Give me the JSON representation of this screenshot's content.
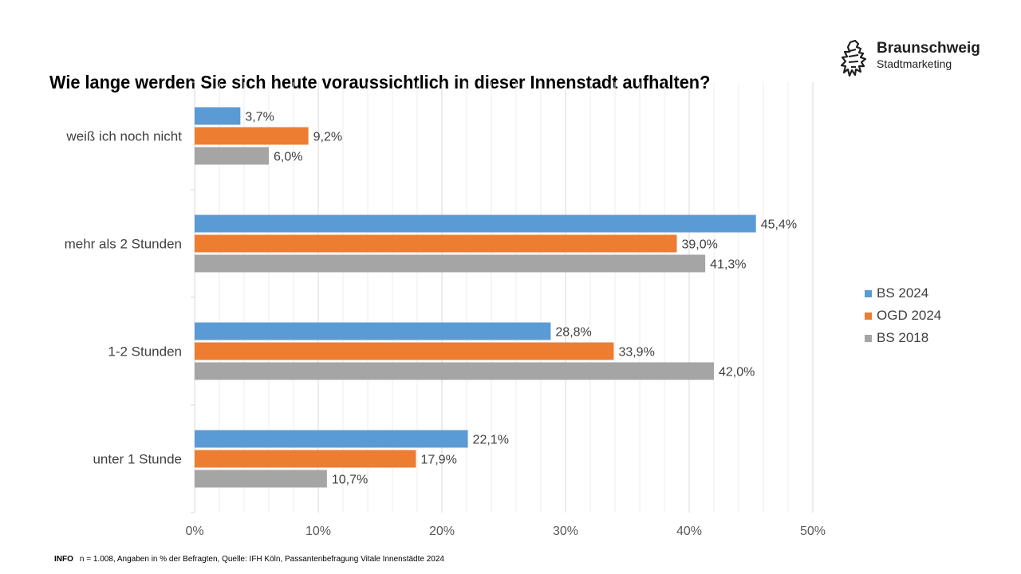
{
  "brand": {
    "name": "Braunschweig",
    "sub": "Stadtmarketing",
    "logo_icon": "lion-icon"
  },
  "footnote": {
    "tag": "INFO",
    "text": "n = 1.008, Angaben in % der Befragten, Quelle: IFH Köln, Passantenbefragung Vitale Innenstädte 2024"
  },
  "chart_data": {
    "type": "bar",
    "orientation": "horizontal",
    "title": "Wie lange werden Sie sich heute voraussichtlich in dieser Innenstadt aufhalten?",
    "categories": [
      "weiß ich noch nicht",
      "mehr als 2 Stunden",
      "1-2 Stunden",
      "unter 1 Stunde"
    ],
    "series": [
      {
        "name": "BS 2024",
        "color": "#5b9bd5",
        "values": [
          3.7,
          45.4,
          28.8,
          22.1
        ],
        "labels": [
          "3,7%",
          "45,4%",
          "28,8%",
          "22,1%"
        ]
      },
      {
        "name": "OGD 2024",
        "color": "#ed7d31",
        "values": [
          9.2,
          39.0,
          33.9,
          17.9
        ],
        "labels": [
          "9,2%",
          "39,0%",
          "33,9%",
          "17,9%"
        ]
      },
      {
        "name": "BS 2018",
        "color": "#a5a5a5",
        "values": [
          6.0,
          41.3,
          42.0,
          10.7
        ],
        "labels": [
          "6,0%",
          "41,3%",
          "42,0%",
          "10,7%"
        ]
      }
    ],
    "xlim": [
      0,
      50
    ],
    "x_ticks": [
      0,
      10,
      20,
      30,
      40,
      50
    ],
    "x_tick_labels": [
      "0%",
      "10%",
      "20%",
      "30%",
      "40%",
      "50%"
    ],
    "minor_grid_step": 2,
    "grid": true,
    "legend_position": "right"
  }
}
